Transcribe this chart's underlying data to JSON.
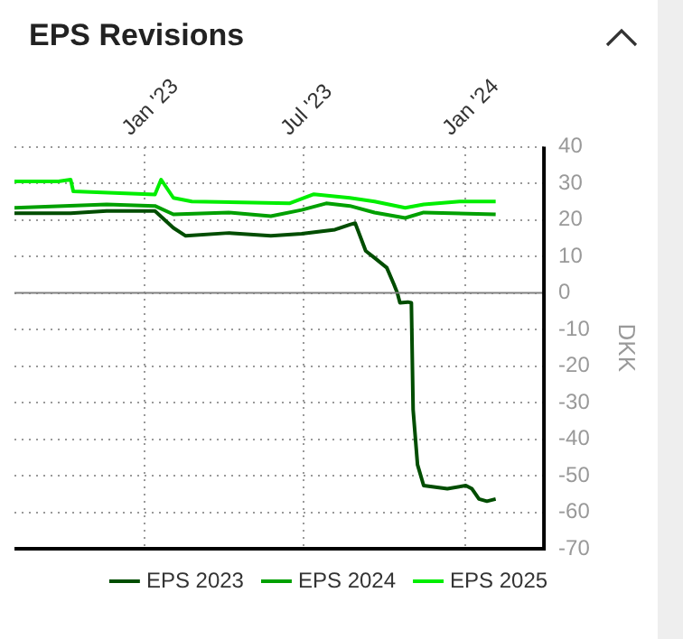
{
  "chart_data": {
    "type": "line",
    "title": "EPS Revisions",
    "ylabel": "DKK",
    "xlim": [
      "2022-08-06",
      "2024-03-31"
    ],
    "xticks": [
      {
        "value": "2023-01-01",
        "label": "Jan '23"
      },
      {
        "value": "2023-07-01",
        "label": "Jul '23"
      },
      {
        "value": "2024-01-01",
        "label": "Jan '24"
      }
    ],
    "ylim": [
      -70,
      40
    ],
    "yticks": [
      -70,
      -60,
      -50,
      -40,
      -30,
      -20,
      -10,
      0,
      10,
      20,
      30,
      40
    ],
    "grid": true,
    "legend": "bottom",
    "ref_lines": [
      {
        "axis": "y",
        "value": 0,
        "color": "#808080"
      }
    ],
    "series": [
      {
        "name": "EPS 2023",
        "color": "#004d00",
        "x": [
          "2022-08-06",
          "2022-10-09",
          "2022-11-19",
          "2023-01-13",
          "2023-02-03",
          "2023-02-17",
          "2023-04-07",
          "2023-05-25",
          "2023-06-29",
          "2023-08-06",
          "2023-08-23",
          "2023-08-29",
          "2023-09-10",
          "2023-09-20",
          "2023-10-04",
          "2023-10-12",
          "2023-10-16",
          "2023-10-19",
          "2023-10-28",
          "2023-11-01",
          "2023-11-03",
          "2023-11-08",
          "2023-11-15",
          "2023-12-12",
          "2024-01-02",
          "2024-01-09",
          "2024-01-17",
          "2024-01-26",
          "2024-02-05"
        ],
        "values": [
          21.8,
          21.8,
          22.4,
          22.4,
          17.8,
          15.6,
          16.4,
          15.6,
          16.2,
          17.3,
          18.7,
          19.1,
          11.5,
          9.6,
          6.9,
          2.4,
          0,
          -2.7,
          -2.5,
          -2.7,
          -32,
          -47,
          -52.7,
          -53.6,
          -52.7,
          -53.6,
          -56.4,
          -57,
          -56.4
        ]
      },
      {
        "name": "EPS 2024",
        "color": "#00a000",
        "x": [
          "2022-08-06",
          "2022-11-19",
          "2023-01-13",
          "2023-02-03",
          "2023-04-07",
          "2023-05-25",
          "2023-06-29",
          "2023-07-27",
          "2023-08-23",
          "2023-09-20",
          "2023-10-25",
          "2023-11-15",
          "2024-02-05"
        ],
        "values": [
          23.3,
          24.2,
          23.8,
          21.5,
          22,
          21,
          22.7,
          24.5,
          23.8,
          22,
          20.5,
          22,
          21.5
        ]
      },
      {
        "name": "EPS 2025",
        "color": "#00ee00",
        "x": [
          "2022-08-06",
          "2022-09-25",
          "2022-10-09",
          "2022-10-12",
          "2023-01-13",
          "2023-01-20",
          "2023-02-03",
          "2023-02-24",
          "2023-06-15",
          "2023-07-13",
          "2023-08-23",
          "2023-09-20",
          "2023-10-25",
          "2023-11-15",
          "2023-12-26",
          "2024-02-05"
        ],
        "values": [
          30.5,
          30.5,
          31,
          27.8,
          26.9,
          31,
          26,
          25,
          24.5,
          27,
          26,
          25,
          23.3,
          24.2,
          25,
          25
        ]
      }
    ]
  }
}
